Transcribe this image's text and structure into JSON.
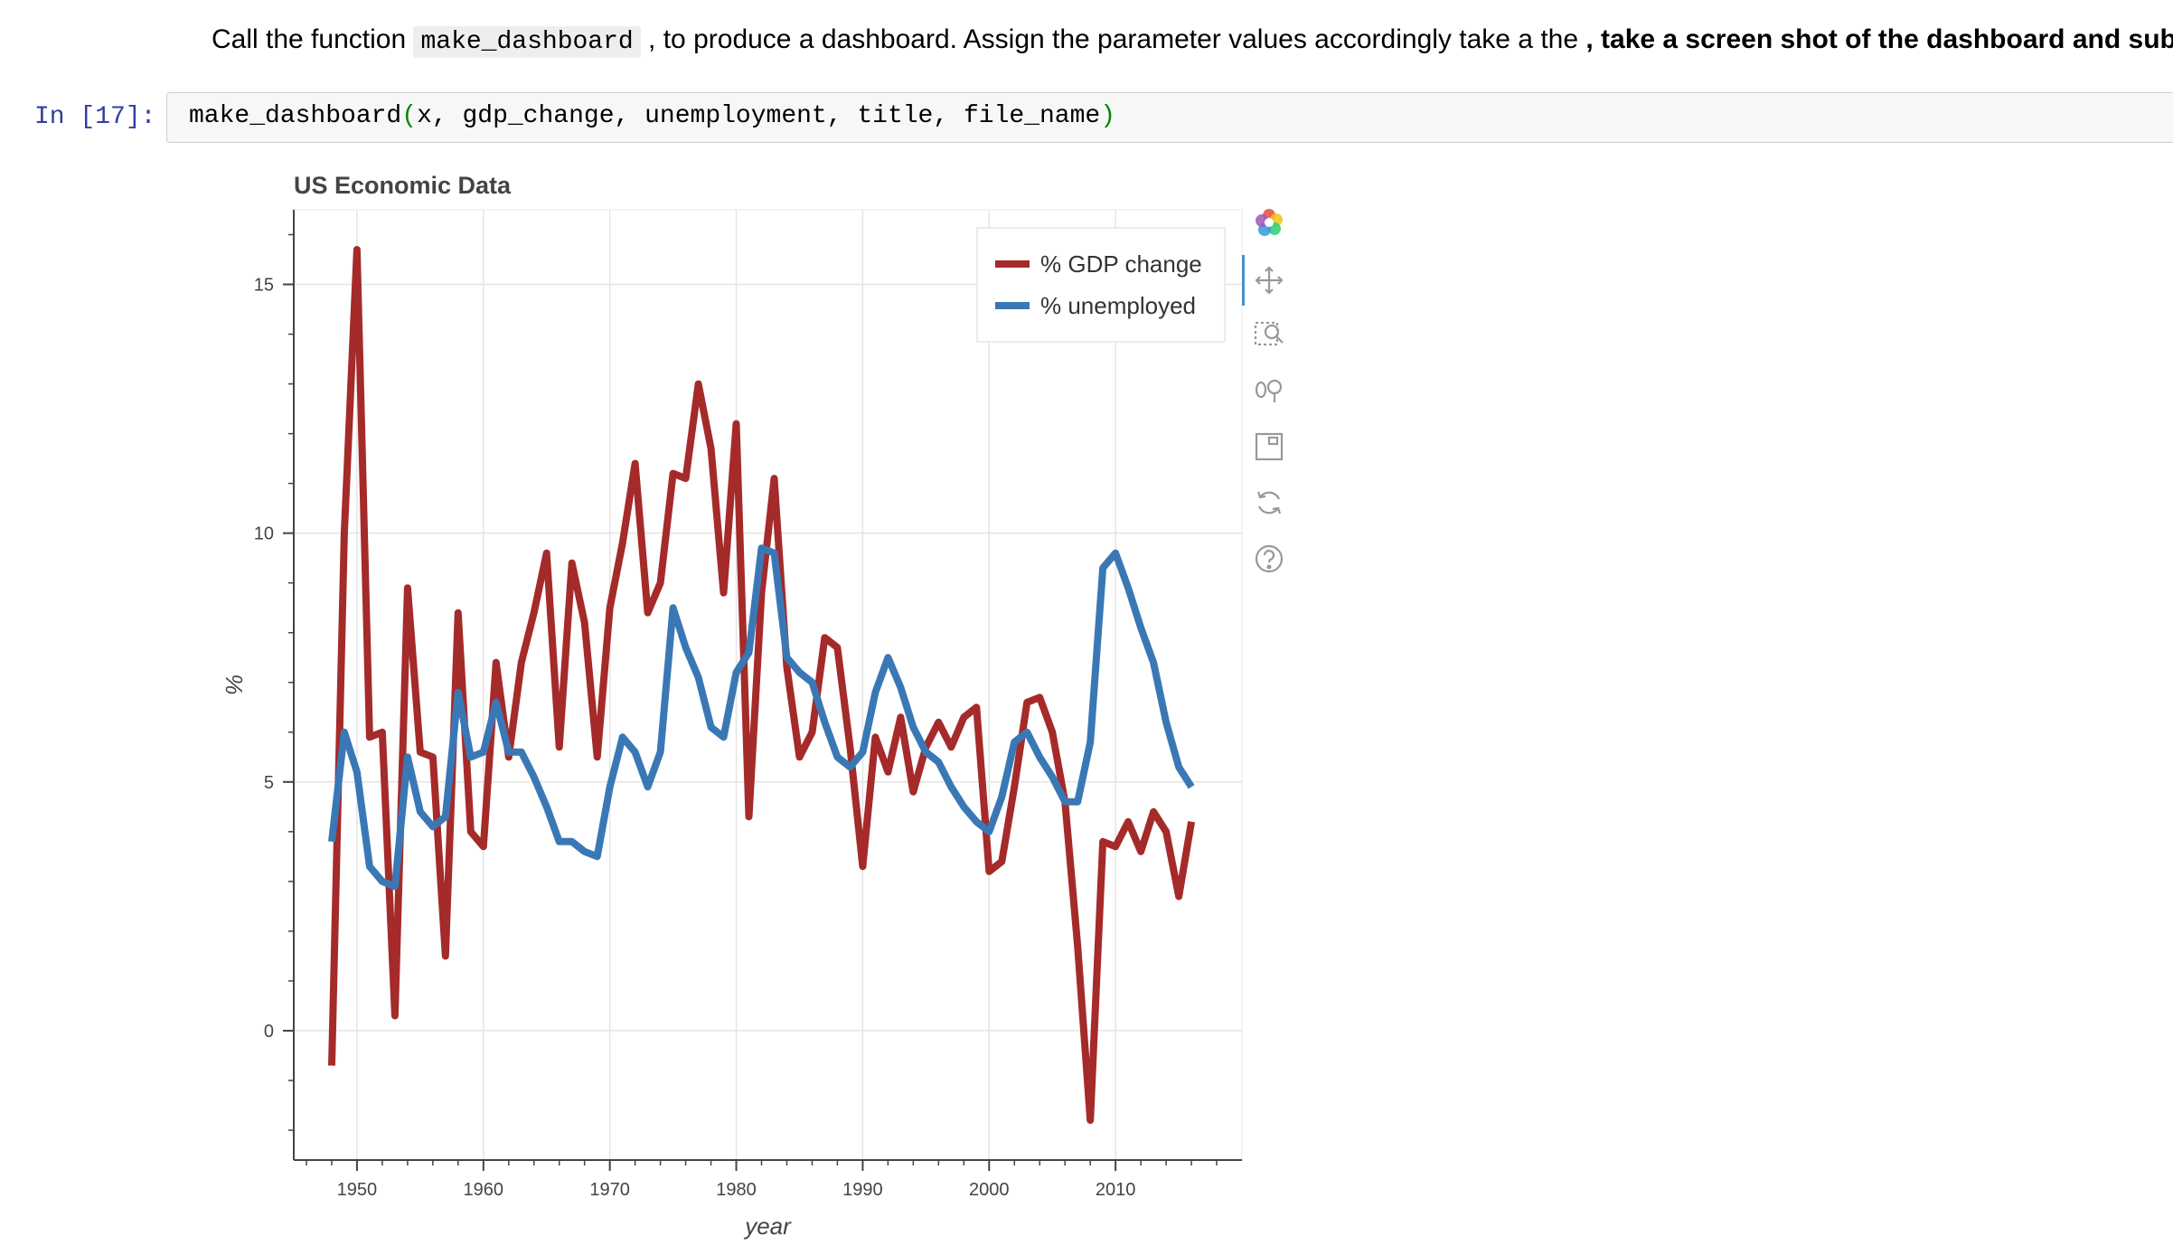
{
  "instruction": {
    "prefix": "Call the function ",
    "func": "make_dashboard",
    "middle": " , to produce a dashboard. Assign the parameter values accordingly take a the ",
    "bold": ", take a screen shot of the dashboard and submit it",
    "suffix": "."
  },
  "cell": {
    "prompt": "In [17]:",
    "code_func": "make_dashboard",
    "code_open": "(",
    "code_args": "x, gdp_change, unemployment, title, file_name",
    "code_close": ")"
  },
  "toolbar": {
    "tools": [
      "bokeh-logo-icon",
      "pan-icon",
      "box-zoom-icon",
      "wheel-zoom-icon",
      "save-icon",
      "reset-icon",
      "help-icon"
    ]
  },
  "colors": {
    "gdp": "#a52a2a",
    "unemployment": "#3a78b5",
    "grid": "#e5e5e5",
    "axis": "#444444"
  },
  "chart_data": {
    "type": "line",
    "title": "US Economic Data",
    "xlabel": "year",
    "ylabel": "%",
    "xlim": [
      1945,
      2020
    ],
    "ylim": [
      -2.6,
      16.5
    ],
    "x_ticks": [
      1950,
      1960,
      1970,
      1980,
      1990,
      2000,
      2010
    ],
    "y_ticks": [
      0,
      5,
      10,
      15
    ],
    "grid": true,
    "legend_position": "top-right",
    "x": [
      1948,
      1949,
      1950,
      1951,
      1952,
      1953,
      1954,
      1955,
      1956,
      1957,
      1958,
      1959,
      1960,
      1961,
      1962,
      1963,
      1964,
      1965,
      1966,
      1967,
      1968,
      1969,
      1970,
      1971,
      1972,
      1973,
      1974,
      1975,
      1976,
      1977,
      1978,
      1979,
      1980,
      1981,
      1982,
      1983,
      1984,
      1985,
      1986,
      1987,
      1988,
      1989,
      1990,
      1991,
      1992,
      1993,
      1994,
      1995,
      1996,
      1997,
      1998,
      1999,
      2000,
      2001,
      2002,
      2003,
      2004,
      2005,
      2006,
      2007,
      2008,
      2009,
      2010,
      2011,
      2012,
      2013,
      2014,
      2015,
      2016
    ],
    "series": [
      {
        "name": "% GDP change",
        "values": [
          -0.7,
          10,
          15.7,
          5.9,
          6,
          0.3,
          8.9,
          5.6,
          5.5,
          1.5,
          8.4,
          4,
          3.7,
          7.4,
          5.5,
          7.4,
          8.4,
          9.6,
          5.7,
          9.4,
          8.2,
          5.5,
          8.5,
          9.8,
          11.4,
          8.4,
          9,
          11.2,
          11.1,
          13,
          11.7,
          8.8,
          12.2,
          4.3,
          8.8,
          11.1,
          7.3,
          5.5,
          6,
          7.9,
          7.7,
          5.7,
          3.3,
          5.9,
          5.2,
          6.3,
          4.8,
          5.7,
          6.2,
          5.7,
          6.3,
          6.5,
          3.2,
          3.4,
          4.9,
          6.6,
          6.7,
          6,
          4.6,
          1.7,
          -1.8,
          3.8,
          3.7,
          4.2,
          3.6,
          4.4,
          4,
          2.7,
          4.2
        ]
      },
      {
        "name": "% unemployed",
        "values": [
          3.8,
          6,
          5.2,
          3.3,
          3,
          2.9,
          5.5,
          4.4,
          4.1,
          4.3,
          6.8,
          5.5,
          5.6,
          6.6,
          5.6,
          5.6,
          5.1,
          4.5,
          3.8,
          3.8,
          3.6,
          3.5,
          4.9,
          5.9,
          5.6,
          4.9,
          5.6,
          8.5,
          7.7,
          7.1,
          6.1,
          5.9,
          7.2,
          7.6,
          9.7,
          9.6,
          7.5,
          7.2,
          7,
          6.2,
          5.5,
          5.3,
          5.6,
          6.8,
          7.5,
          6.9,
          6.1,
          5.6,
          5.4,
          4.9,
          4.5,
          4.2,
          4,
          4.7,
          5.8,
          6,
          5.5,
          5.1,
          4.6,
          4.6,
          5.8,
          9.3,
          9.6,
          8.9,
          8.1,
          7.4,
          6.2,
          5.3,
          4.9
        ]
      }
    ]
  }
}
